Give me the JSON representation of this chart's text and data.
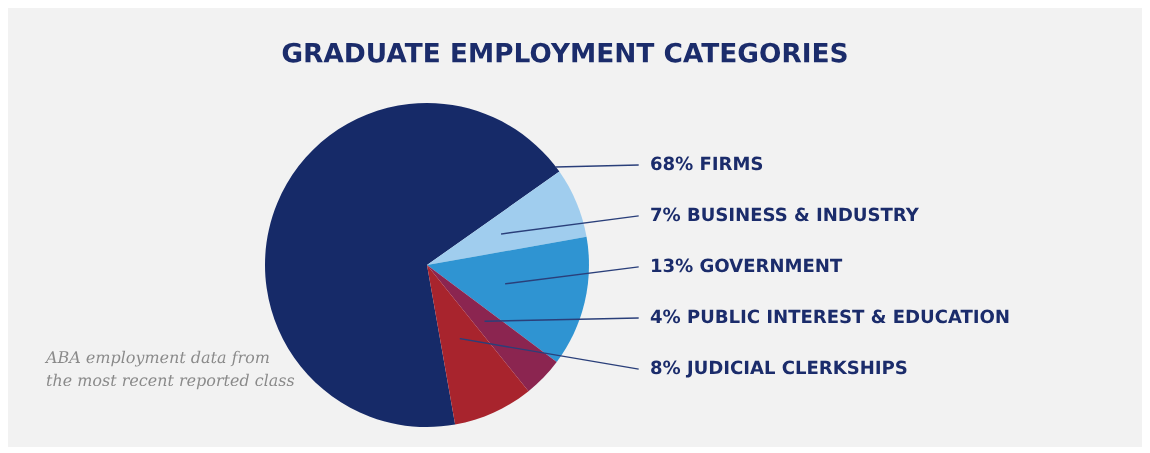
{
  "chart_data": {
    "type": "pie",
    "title": "GRADUATE EMPLOYMENT CATEGORIES",
    "categories": [
      "FIRMS",
      "BUSINESS & INDUSTRY",
      "GOVERNMENT",
      "PUBLIC INTEREST & EDUCATION",
      "JUDICIAL CLERKSHIPS"
    ],
    "values": [
      68,
      7,
      13,
      4,
      8
    ],
    "value_labels": [
      "68%",
      "7%",
      "13%",
      "4%",
      "8%"
    ],
    "colors": [
      "#162a68",
      "#a0cdee",
      "#2f94d2",
      "#8b2550",
      "#a8242d"
    ],
    "annotations": [
      "ABA employment data from\nthe most recent reported class"
    ]
  }
}
